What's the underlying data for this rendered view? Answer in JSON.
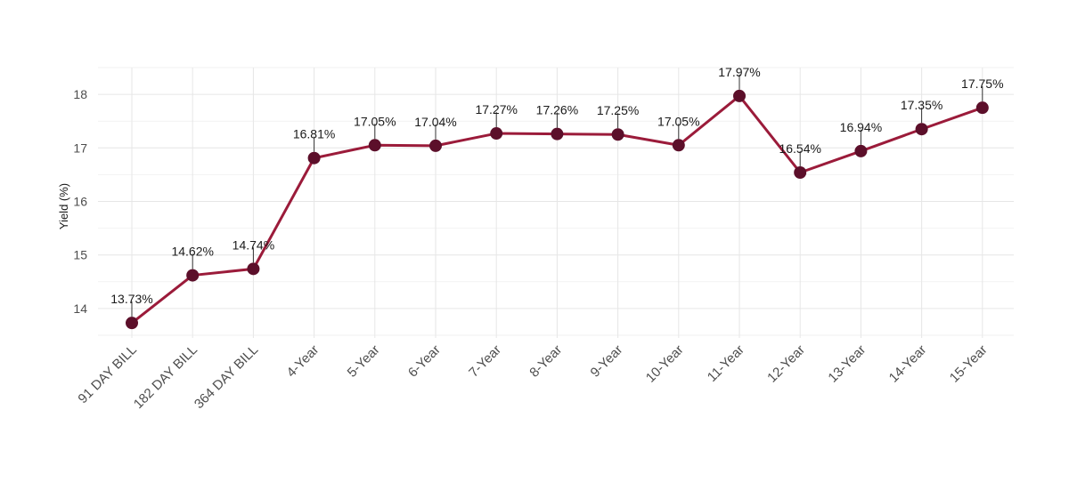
{
  "chart_data": {
    "type": "line",
    "title": "",
    "xlabel": "",
    "ylabel": "Yield (%)",
    "categories": [
      "91 DAY BILL",
      "182 DAY BILL",
      "364 DAY BILL",
      "4-Year",
      "5-Year",
      "6-Year",
      "7-Year",
      "8-Year",
      "9-Year",
      "10-Year",
      "11-Year",
      "12-Year",
      "13-Year",
      "14-Year",
      "15-Year"
    ],
    "series": [
      {
        "values": [
          13.73,
          14.62,
          14.74,
          16.81,
          17.05,
          17.04,
          17.27,
          17.26,
          17.25,
          17.05,
          17.97,
          16.54,
          16.94,
          17.35,
          17.75
        ]
      }
    ],
    "data_labels": [
      "13.73%",
      "14.62%",
      "14.74%",
      "16.81%",
      "17.05%",
      "17.04%",
      "17.27%",
      "17.26%",
      "17.25%",
      "17.05%",
      "17.97%",
      "16.54%",
      "16.94%",
      "17.35%",
      "17.75%"
    ],
    "ylim": [
      13.45,
      18.5
    ],
    "yticks": [
      14,
      15,
      16,
      17,
      18
    ],
    "grid": true,
    "legend": "none",
    "colors": {
      "line": "#9b1b3a",
      "point": "#5c0f2a",
      "grid_major": "#e6e6e6",
      "grid_minor": "#f2f2f2"
    }
  }
}
